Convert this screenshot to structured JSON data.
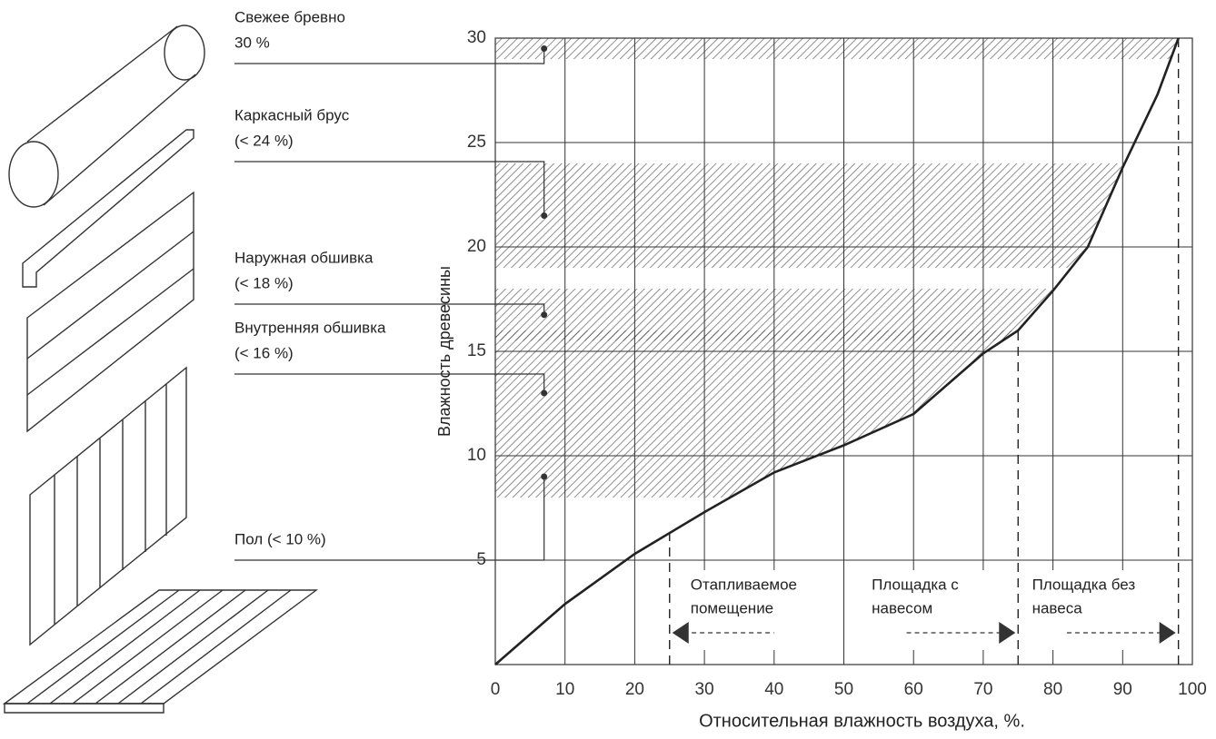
{
  "chart_data": {
    "type": "line",
    "x_label": "Относительная влажность воздуха, %.",
    "y_label": "Влажность древесины",
    "x": [
      0,
      10,
      20,
      30,
      40,
      50,
      60,
      70,
      75,
      80,
      85,
      90,
      95,
      98
    ],
    "series": [
      {
        "color": "#222222",
        "values": [
          0,
          2.9,
          5.3,
          7.3,
          9.2,
          10.5,
          12,
          14.9,
          16,
          17.9,
          20,
          23.8,
          27.3,
          30
        ]
      }
    ],
    "xlim": [
      0,
      100
    ],
    "ylim": [
      0,
      30
    ],
    "xticks": [
      0,
      10,
      20,
      30,
      40,
      50,
      60,
      70,
      80,
      90,
      100
    ],
    "yticks": [
      5,
      10,
      15,
      20,
      25,
      30
    ],
    "grid": true,
    "bands": [
      {
        "label": [
          "Свежее бревно",
          "30 %"
        ],
        "lo": 29,
        "hi": 30
      },
      {
        "label": [
          "Каркасный брус",
          "(< 24 %)"
        ],
        "lo": 19,
        "hi": 24
      },
      {
        "label": [
          "Наружная обшивка",
          "(< 18 %)"
        ],
        "lo": 15.5,
        "hi": 18
      },
      {
        "label": [
          "Внутренняя обшивка",
          "(< 16 %)"
        ],
        "lo": 10,
        "hi": 16
      },
      {
        "label": [
          "Пол (< 10 %)"
        ],
        "lo": 8,
        "hi": 10
      }
    ],
    "zones": [
      {
        "label": [
          "Отапливаемое",
          "помещение"
        ],
        "at": 25,
        "arrow": "left"
      },
      {
        "label": [
          "Площадка с",
          "навесом"
        ],
        "at": 75,
        "arrow": "right"
      },
      {
        "label": [
          "Площадка без",
          "навеса"
        ],
        "at": 98,
        "arrow": "right"
      }
    ]
  }
}
